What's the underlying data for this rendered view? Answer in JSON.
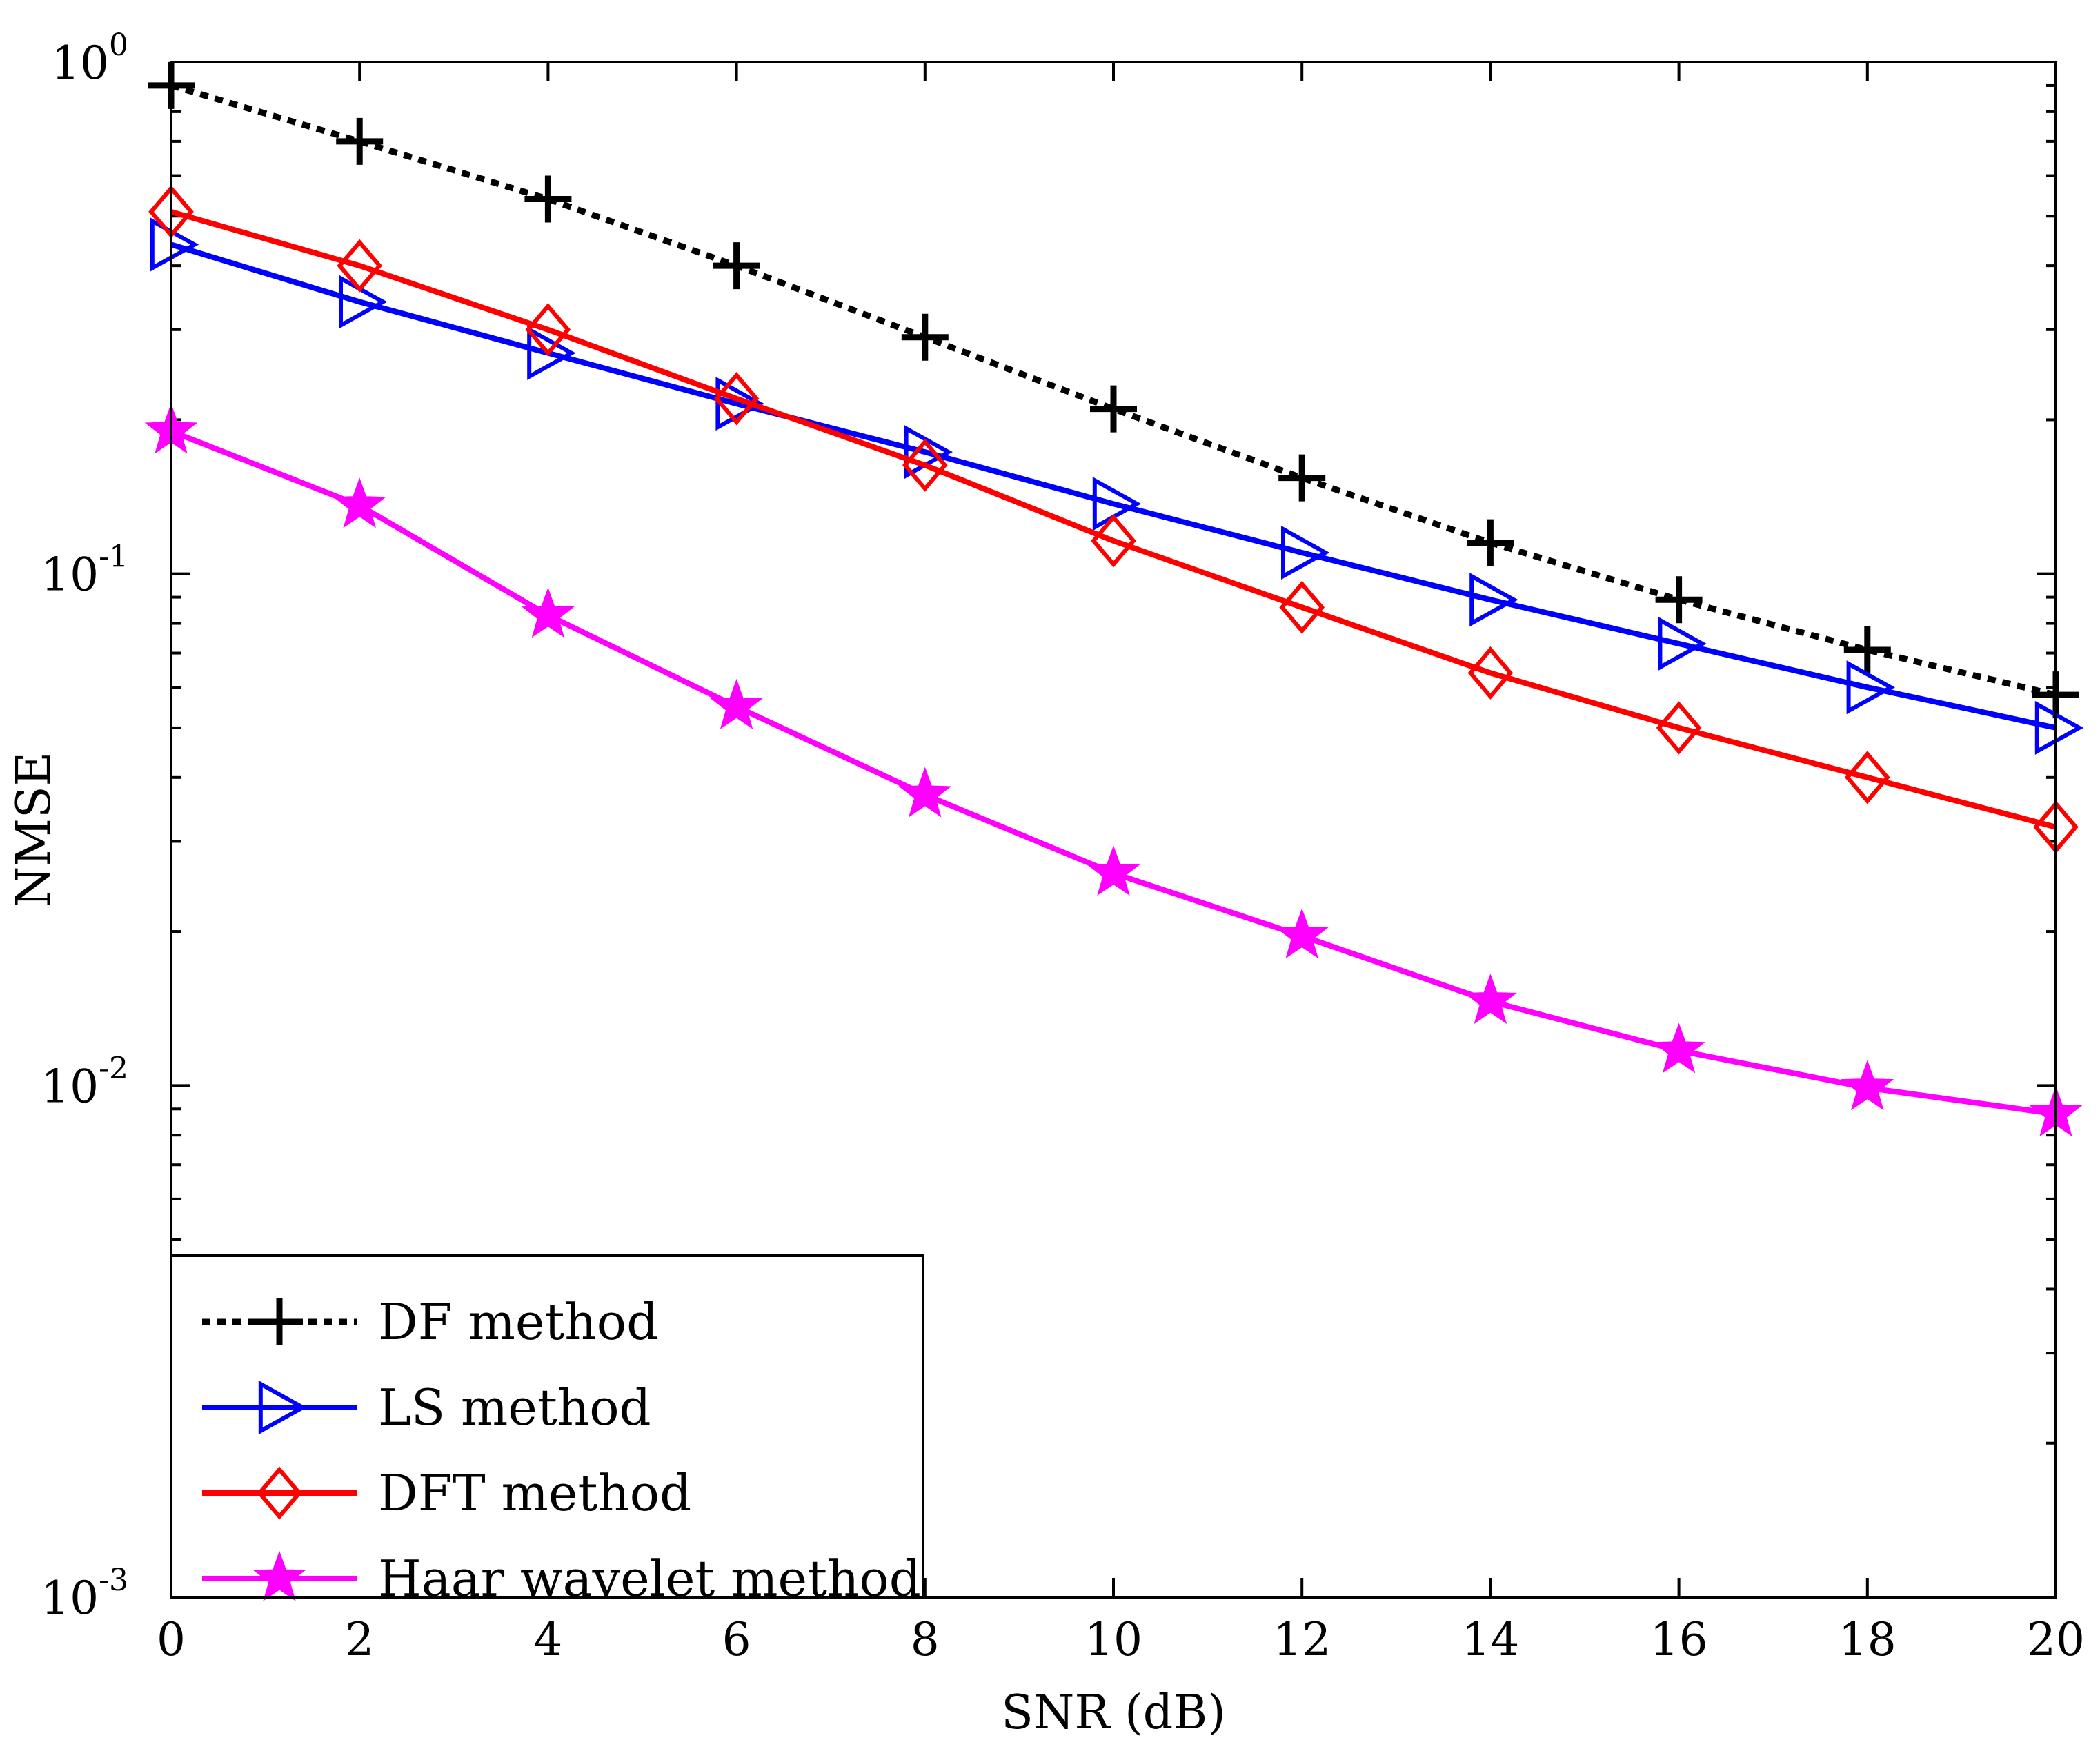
{
  "chart_data": {
    "type": "line",
    "title": "",
    "xlabel": "SNR (dB)",
    "ylabel": "NMSE",
    "yscale": "log",
    "xlim": [
      0,
      20
    ],
    "ylim": [
      0.001,
      1
    ],
    "xticks": [
      0,
      2,
      4,
      6,
      8,
      10,
      12,
      14,
      16,
      18,
      20
    ],
    "yticks": [
      {
        "value": 1,
        "base": "10",
        "exp": "0"
      },
      {
        "value": 0.1,
        "base": "10",
        "exp": "-1"
      },
      {
        "value": 0.01,
        "base": "10",
        "exp": "-2"
      },
      {
        "value": 0.001,
        "base": "10",
        "exp": "-3"
      }
    ],
    "grid": false,
    "legend_position": "bottom-left",
    "x": [
      0,
      2,
      4,
      6,
      8,
      10,
      12,
      14,
      16,
      18,
      20
    ],
    "series": [
      {
        "name": "DF method",
        "color": "#000000",
        "line_style": "dotted",
        "marker": "plus",
        "values": [
          0.9,
          0.7,
          0.54,
          0.4,
          0.29,
          0.21,
          0.154,
          0.115,
          0.089,
          0.071,
          0.058
        ]
      },
      {
        "name": "LS method",
        "color": "#0000ff",
        "line_style": "solid",
        "marker": "triangle-right",
        "values": [
          0.44,
          0.34,
          0.27,
          0.215,
          0.173,
          0.137,
          0.11,
          0.089,
          0.073,
          0.06,
          0.05
        ]
      },
      {
        "name": "DFT method",
        "color": "#ff0000",
        "line_style": "solid",
        "marker": "diamond",
        "values": [
          0.51,
          0.4,
          0.3,
          0.22,
          0.163,
          0.116,
          0.086,
          0.064,
          0.05,
          0.04,
          0.032
        ]
      },
      {
        "name": "Haar wavelet method",
        "color": "#ff00ff",
        "line_style": "solid",
        "marker": "star",
        "values": [
          0.19,
          0.136,
          0.083,
          0.055,
          0.037,
          0.026,
          0.0196,
          0.0146,
          0.0117,
          0.0099,
          0.0088
        ]
      }
    ]
  }
}
